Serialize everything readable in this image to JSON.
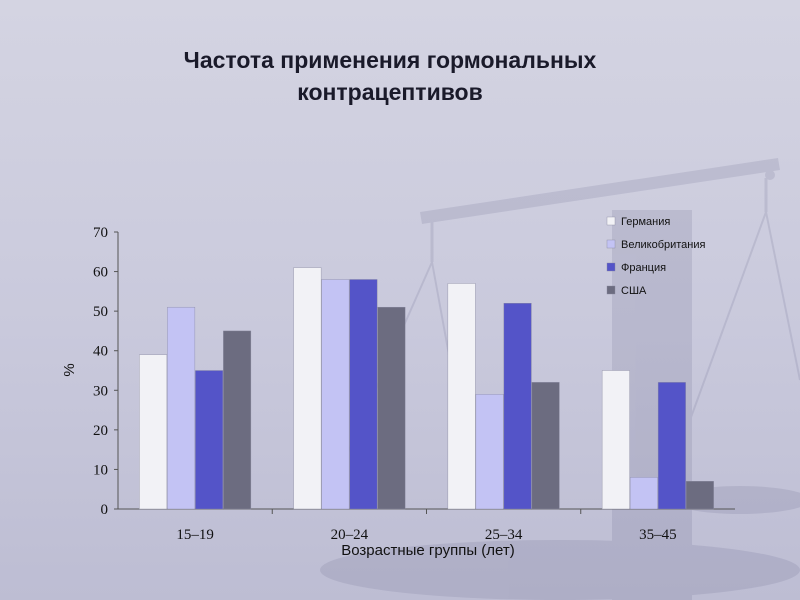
{
  "slide": {
    "title_line1": "Частота применения гормональных",
    "title_line2": "контрацептивов"
  },
  "colors": {
    "background": "#c9c9dc",
    "series": [
      "#f2f2f6",
      "#c3c3f4",
      "#5454c8",
      "#6c6c80"
    ]
  },
  "chart_data": {
    "type": "bar",
    "title": "",
    "categories": [
      "15–19",
      "20–24",
      "25–34",
      "35–45"
    ],
    "series": [
      {
        "name": "Германия",
        "values": [
          39,
          61,
          57,
          35
        ]
      },
      {
        "name": "Великобритания",
        "values": [
          51,
          58,
          29,
          8
        ]
      },
      {
        "name": "Франция",
        "values": [
          35,
          58,
          52,
          32
        ]
      },
      {
        "name": "США",
        "values": [
          45,
          51,
          32,
          7
        ]
      }
    ],
    "xlabel": "Возрастные группы (лет)",
    "ylabel": "%",
    "ylim": [
      0,
      70
    ],
    "yticks": [
      0,
      10,
      20,
      30,
      40,
      50,
      60,
      70
    ],
    "grid": false,
    "legend_position": "top-right"
  }
}
